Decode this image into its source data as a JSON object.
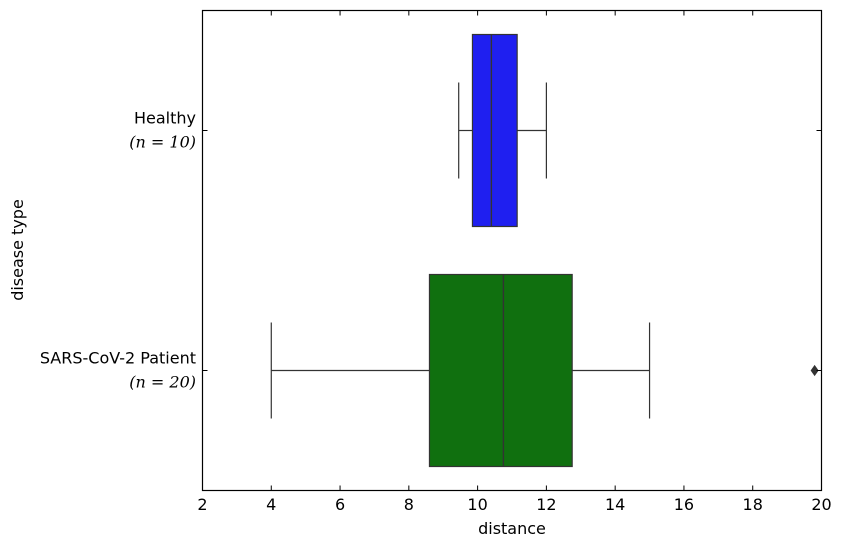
{
  "chart_data": {
    "type": "box",
    "orientation": "horizontal",
    "xlabel": "distance",
    "ylabel": "disease type",
    "xlim": [
      2,
      20
    ],
    "xticks": [
      2,
      4,
      6,
      8,
      10,
      12,
      14,
      16,
      18,
      20
    ],
    "grid": false,
    "categories": [
      {
        "label": "Healthy",
        "n_label": "(n = 10)",
        "color": "#1f1ff0",
        "whisker_low": 9.45,
        "q1": 9.85,
        "median": 10.4,
        "q3": 11.15,
        "whisker_high": 12.0,
        "outliers": []
      },
      {
        "label": "SARS-CoV-2 Patient",
        "n_label": "(n = 20)",
        "color": "#10700f",
        "whisker_low": 4.0,
        "q1": 8.6,
        "median": 10.75,
        "q3": 12.75,
        "whisker_high": 15.0,
        "outliers": [
          19.8
        ]
      }
    ]
  }
}
